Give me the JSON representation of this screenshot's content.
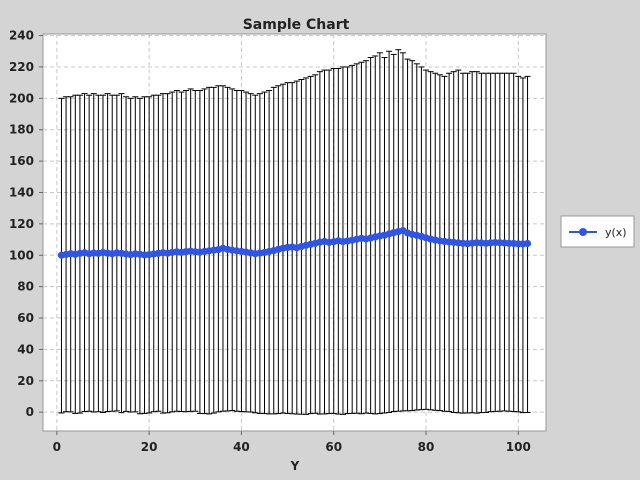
{
  "chart_data": {
    "type": "scatter",
    "title": "Sample Chart",
    "xlabel": "Y",
    "ylabel": "",
    "xlim": [
      -3,
      106
    ],
    "ylim": [
      -12,
      241
    ],
    "xticks": [
      0,
      20,
      40,
      60,
      80,
      100
    ],
    "yticks": [
      0,
      20,
      40,
      60,
      80,
      100,
      120,
      140,
      160,
      180,
      200,
      220,
      240
    ],
    "grid": true,
    "legend_position": "right",
    "series": [
      {
        "name": "y(x)",
        "color": "#2f55e8",
        "marker": "circle",
        "line": true,
        "error_bars": true,
        "x": [
          1,
          2,
          3,
          4,
          5,
          6,
          7,
          8,
          9,
          10,
          11,
          12,
          13,
          14,
          15,
          16,
          17,
          18,
          19,
          20,
          21,
          22,
          23,
          24,
          25,
          26,
          27,
          28,
          29,
          30,
          31,
          32,
          33,
          34,
          35,
          36,
          37,
          38,
          39,
          40,
          41,
          42,
          43,
          44,
          45,
          46,
          47,
          48,
          49,
          50,
          51,
          52,
          53,
          54,
          55,
          56,
          57,
          58,
          59,
          60,
          61,
          62,
          63,
          64,
          65,
          66,
          67,
          68,
          69,
          70,
          71,
          72,
          73,
          74,
          75,
          76,
          77,
          78,
          79,
          80,
          81,
          82,
          83,
          84,
          85,
          86,
          87,
          88,
          89,
          90,
          91,
          92,
          93,
          94,
          95,
          96,
          97,
          98,
          99,
          100,
          101,
          102
        ],
        "y": [
          100.0,
          100.5,
          101.0,
          100.6,
          101.2,
          101.6,
          101.0,
          101.4,
          101.2,
          101.7,
          101.3,
          101.0,
          101.5,
          101.2,
          100.8,
          100.4,
          100.9,
          100.6,
          100.2,
          100.4,
          100.8,
          101.2,
          101.6,
          101.3,
          101.8,
          102.2,
          101.9,
          102.3,
          102.6,
          102.2,
          102.0,
          102.4,
          102.8,
          103.2,
          103.6,
          104.4,
          103.8,
          103.2,
          102.8,
          102.4,
          102.0,
          101.5,
          101.0,
          101.4,
          101.8,
          102.4,
          103.0,
          103.8,
          104.4,
          105.0,
          105.2,
          104.8,
          105.6,
          106.3,
          107.0,
          107.6,
          108.3,
          108.8,
          108.2,
          108.6,
          109.2,
          108.7,
          109.1,
          109.6,
          110.2,
          110.8,
          110.4,
          111.0,
          111.7,
          112.3,
          112.8,
          113.6,
          114.4,
          115.1,
          115.7,
          114.2,
          113.3,
          112.7,
          112.0,
          111.1,
          110.3,
          109.7,
          109.2,
          108.8,
          108.5,
          108.2,
          107.9,
          107.6,
          107.4,
          107.7,
          108.0,
          107.8,
          107.6,
          107.9,
          108.1,
          108.0,
          107.8,
          107.6,
          107.5,
          107.3,
          107.2,
          107.5
        ],
        "y_upper": [
          200,
          201,
          201,
          202,
          202,
          203,
          202,
          203,
          202,
          202,
          203,
          202,
          202,
          203,
          201,
          200,
          201,
          200,
          201,
          201,
          202,
          202,
          203,
          203,
          204,
          205,
          204,
          205,
          206,
          205,
          205,
          206,
          207,
          207,
          208,
          208,
          207,
          206,
          205,
          205,
          204,
          203,
          202,
          203,
          204,
          205,
          207,
          208,
          209,
          210,
          210,
          211,
          212,
          213,
          214,
          215,
          217,
          218,
          218,
          219,
          219,
          220,
          220,
          221,
          222,
          223,
          224,
          226,
          227,
          229,
          226,
          230,
          228,
          231,
          229,
          225,
          224,
          222,
          220,
          218,
          217,
          216,
          215,
          214,
          216,
          217,
          218,
          216,
          216,
          217,
          217,
          216,
          216,
          216,
          216,
          216,
          216,
          216,
          216,
          214,
          213,
          214
        ],
        "y_lower": [
          -0.5,
          0.3,
          0.2,
          -0.8,
          -0.6,
          0.4,
          0.6,
          0.1,
          0.3,
          -0.2,
          0.4,
          0.6,
          0.8,
          -0.3,
          0.5,
          0.1,
          0.2,
          -1.0,
          -0.8,
          -0.5,
          0.3,
          0.6,
          -0.6,
          -0.4,
          0.2,
          0.6,
          0.4,
          0.3,
          0.5,
          0.6,
          -0.8,
          -0.9,
          -1.1,
          -0.6,
          0.2,
          0.6,
          0.8,
          1.0,
          0.6,
          0.4,
          0.2,
          0.1,
          -0.4,
          -0.8,
          -0.9,
          -1.1,
          -1.1,
          -0.9,
          -0.6,
          -0.8,
          -1.0,
          -1.2,
          -1.3,
          -1.4,
          -0.9,
          -0.7,
          -1.2,
          -1.1,
          -0.9,
          -0.8,
          -1.2,
          -1.4,
          -0.9,
          -0.8,
          -0.7,
          -1.0,
          -0.6,
          -0.8,
          -1.1,
          -0.9,
          -0.5,
          -0.2,
          0.4,
          0.6,
          0.8,
          0.9,
          1.0,
          1.4,
          1.6,
          1.8,
          1.5,
          1.2,
          1.0,
          0.6,
          0.4,
          -0.2,
          -0.4,
          -0.6,
          -0.5,
          -0.4,
          -0.6,
          -0.3,
          -0.2,
          0.3,
          0.5,
          0.6,
          0.8,
          0.6,
          0.4,
          0.2,
          -0.3,
          -0.2
        ]
      }
    ]
  }
}
